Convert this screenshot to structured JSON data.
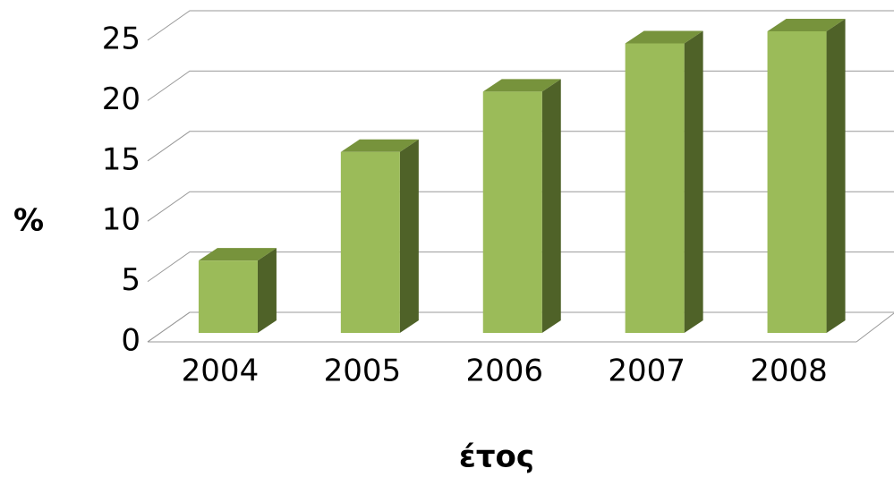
{
  "chart_data": {
    "type": "bar3d",
    "categories": [
      "2004",
      "2005",
      "2006",
      "2007",
      "2008"
    ],
    "values": [
      6,
      15,
      20,
      24,
      25
    ],
    "color": "#9bbb59",
    "y_label": "%",
    "x_label": "έτος",
    "ylim": [
      0,
      25
    ],
    "yticks": [
      0,
      5,
      10,
      15,
      20,
      25
    ],
    "grid": true
  }
}
